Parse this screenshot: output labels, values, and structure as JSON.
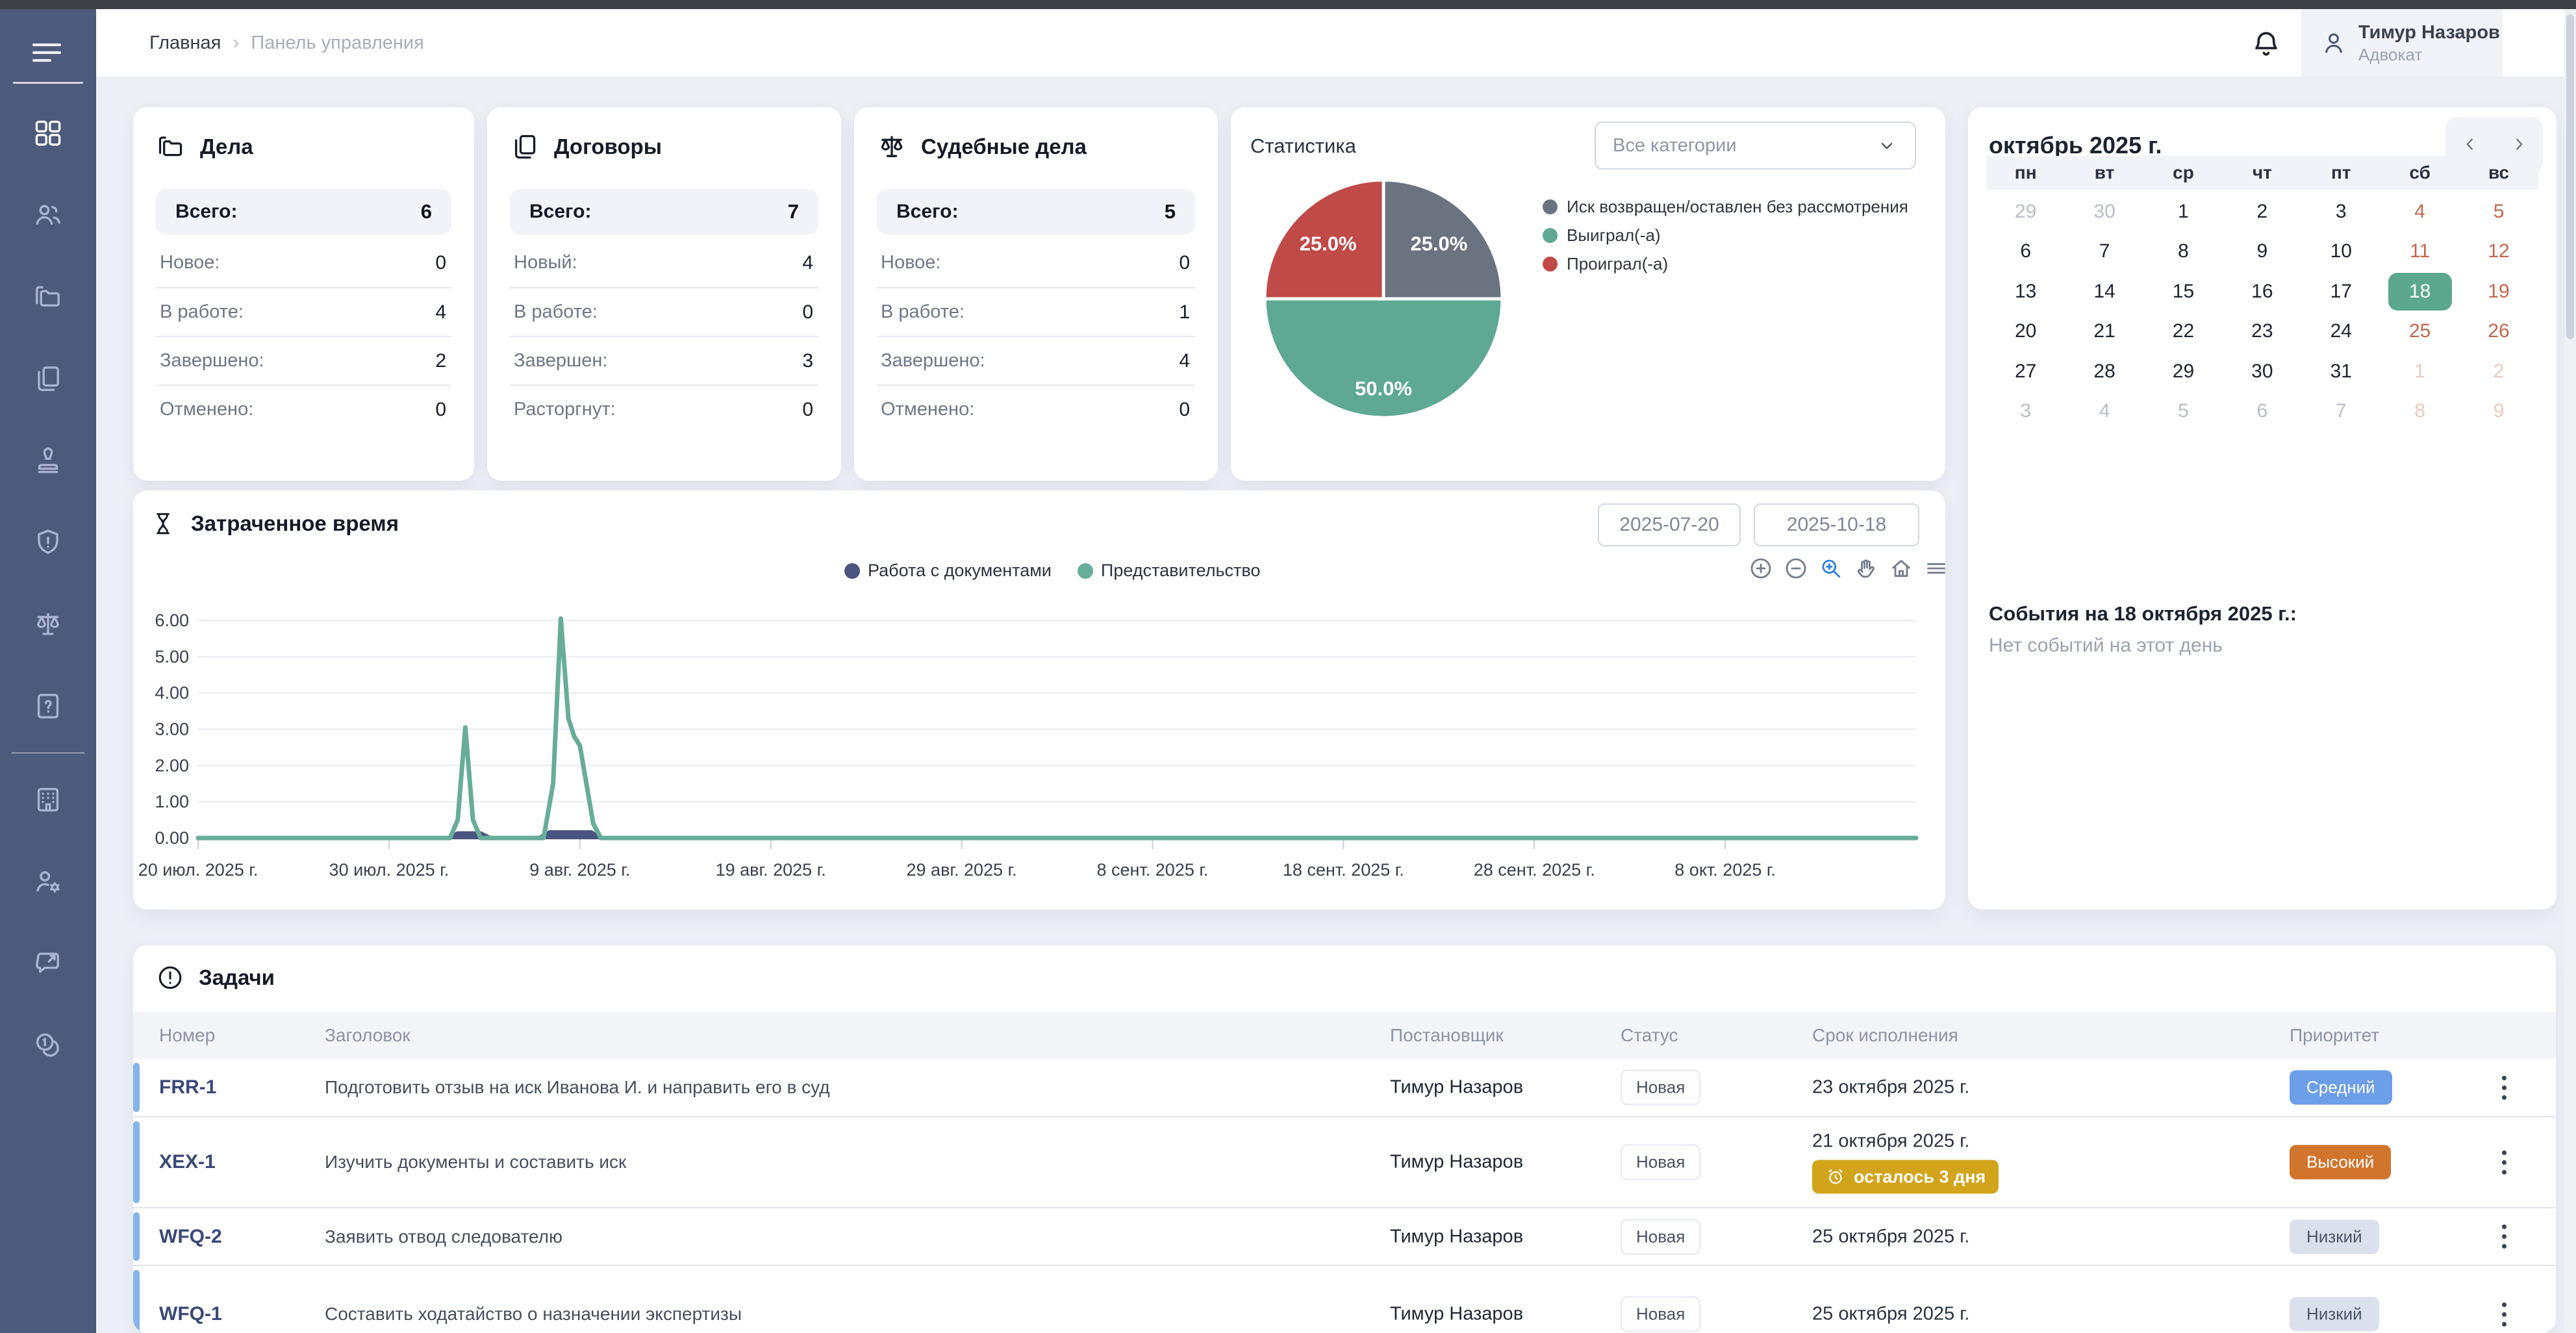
{
  "header": {
    "breadcrumb": {
      "home": "Главная",
      "separator": "›",
      "current": "Панель управления"
    },
    "user": {
      "name": "Тимур Назаров",
      "role": "Адвокат"
    }
  },
  "sidebar": {
    "items": [
      {
        "id": "dashboard",
        "icon": "dashboard",
        "active": true
      },
      {
        "id": "clients",
        "icon": "users"
      },
      {
        "id": "cases",
        "icon": "folders"
      },
      {
        "id": "contracts",
        "icon": "documents"
      },
      {
        "id": "stamp",
        "icon": "stamp"
      },
      {
        "id": "risks",
        "icon": "shield-alert"
      },
      {
        "id": "court-cases",
        "icon": "scales"
      },
      {
        "id": "requests",
        "icon": "file-question"
      },
      "divider",
      {
        "id": "office",
        "icon": "building"
      },
      {
        "id": "personnel",
        "icon": "user-gear"
      },
      {
        "id": "feedback",
        "icon": "chat-arrow"
      },
      {
        "id": "billing",
        "icon": "coins"
      }
    ]
  },
  "summary_cards": [
    {
      "title": "Дела",
      "icon": "folders",
      "total": {
        "label": "Всего:",
        "value": "6"
      },
      "rows": [
        {
          "label": "Новое:",
          "value": "0"
        },
        {
          "label": "В работе:",
          "value": "4"
        },
        {
          "label": "Завершено:",
          "value": "2"
        },
        {
          "label": "Отменено:",
          "value": "0"
        }
      ]
    },
    {
      "title": "Договоры",
      "icon": "documents",
      "total": {
        "label": "Всего:",
        "value": "7"
      },
      "rows": [
        {
          "label": "Новый:",
          "value": "4"
        },
        {
          "label": "В работе:",
          "value": "0"
        },
        {
          "label": "Завершен:",
          "value": "3"
        },
        {
          "label": "Расторгнут:",
          "value": "0"
        }
      ]
    },
    {
      "title": "Судебные дела",
      "icon": "scales",
      "total": {
        "label": "Всего:",
        "value": "5"
      },
      "rows": [
        {
          "label": "Новое:",
          "value": "0"
        },
        {
          "label": "В работе:",
          "value": "1"
        },
        {
          "label": "Завершено:",
          "value": "4"
        },
        {
          "label": "Отменено:",
          "value": "0"
        }
      ]
    }
  ],
  "statistics": {
    "title": "Статистика",
    "filter_value": "Все категории"
  },
  "time_section": {
    "title": "Затраченное время",
    "date_from": "2025-07-20",
    "date_to": "2025-10-18",
    "toolbar": [
      "zoom-in",
      "zoom-out",
      "box-zoom",
      "pan",
      "home",
      "menu-bars"
    ]
  },
  "calendar": {
    "title": "октябрь 2025 г.",
    "weekdays": [
      "пн",
      "вт",
      "ср",
      "чт",
      "пт",
      "сб",
      "вс"
    ],
    "weeks": [
      [
        {
          "d": "29",
          "t": "muted"
        },
        {
          "d": "30",
          "t": "muted"
        },
        {
          "d": "1",
          "t": "normal"
        },
        {
          "d": "2",
          "t": "normal"
        },
        {
          "d": "3",
          "t": "normal"
        },
        {
          "d": "4",
          "t": "weekend"
        },
        {
          "d": "5",
          "t": "weekend"
        }
      ],
      [
        {
          "d": "6",
          "t": "normal"
        },
        {
          "d": "7",
          "t": "normal"
        },
        {
          "d": "8",
          "t": "normal"
        },
        {
          "d": "9",
          "t": "normal"
        },
        {
          "d": "10",
          "t": "normal"
        },
        {
          "d": "11",
          "t": "weekend"
        },
        {
          "d": "12",
          "t": "weekend"
        }
      ],
      [
        {
          "d": "13",
          "t": "normal"
        },
        {
          "d": "14",
          "t": "normal"
        },
        {
          "d": "15",
          "t": "normal"
        },
        {
          "d": "16",
          "t": "normal"
        },
        {
          "d": "17",
          "t": "normal"
        },
        {
          "d": "18",
          "t": "selected"
        },
        {
          "d": "19",
          "t": "weekend"
        }
      ],
      [
        {
          "d": "20",
          "t": "normal"
        },
        {
          "d": "21",
          "t": "normal"
        },
        {
          "d": "22",
          "t": "normal"
        },
        {
          "d": "23",
          "t": "normal"
        },
        {
          "d": "24",
          "t": "normal"
        },
        {
          "d": "25",
          "t": "weekend"
        },
        {
          "d": "26",
          "t": "weekend"
        }
      ],
      [
        {
          "d": "27",
          "t": "normal"
        },
        {
          "d": "28",
          "t": "normal"
        },
        {
          "d": "29",
          "t": "normal"
        },
        {
          "d": "30",
          "t": "normal"
        },
        {
          "d": "31",
          "t": "normal"
        },
        {
          "d": "1",
          "t": "muted-weekend"
        },
        {
          "d": "2",
          "t": "muted-weekend"
        }
      ],
      [
        {
          "d": "3",
          "t": "muted"
        },
        {
          "d": "4",
          "t": "muted"
        },
        {
          "d": "5",
          "t": "muted"
        },
        {
          "d": "6",
          "t": "muted"
        },
        {
          "d": "7",
          "t": "muted"
        },
        {
          "d": "8",
          "t": "muted-weekend"
        },
        {
          "d": "9",
          "t": "muted-weekend"
        }
      ]
    ]
  },
  "events": {
    "title": "События на 18 октября 2025 г.:",
    "empty": "Нет событий на этот день"
  },
  "tasks": {
    "title": "Задачи",
    "columns": [
      "Номер",
      "Заголовок",
      "Постановщик",
      "Статус",
      "Срок исполнения",
      "Приоритет"
    ],
    "rows": [
      {
        "id": "FRR-1",
        "title": "Подготовить отзыв на иск Иванова И. и направить его в суд",
        "author": "Тимур Назаров",
        "status": "Новая",
        "due": "23 октября 2025 г.",
        "due_badge": "",
        "priority": "Средний",
        "priority_type": "medium"
      },
      {
        "id": "XEX-1",
        "title": "Изучить документы и составить иск",
        "author": "Тимур Назаров",
        "status": "Новая",
        "due": "21 октября 2025 г.",
        "due_badge": "осталось 3 дня",
        "priority": "Высокий",
        "priority_type": "high"
      },
      {
        "id": "WFQ-2",
        "title": "Заявить отвод следователю",
        "author": "Тимур Назаров",
        "status": "Новая",
        "due": "25 октября 2025 г.",
        "due_badge": "",
        "priority": "Низкий",
        "priority_type": "low"
      },
      {
        "id": "WFQ-1",
        "title": "Составить ходатайство о назначении экспертизы",
        "author": "Тимур Назаров",
        "status": "Новая",
        "due": "25 октября 2025 г.",
        "due_badge": "",
        "priority": "Низкий",
        "priority_type": "low"
      }
    ]
  },
  "chart_data": [
    {
      "type": "pie",
      "title": "Статистика",
      "labels": [
        "Иск возвращен/оставлен без рассмотрения",
        "Выиграл(-а)",
        "Проиграл(-а)"
      ],
      "values": [
        25,
        50,
        25
      ],
      "slice_labels": [
        "25.0%",
        "50.0%",
        "25.0%"
      ],
      "colors": [
        "#6b7280",
        "#5EA894",
        "#BF4A47"
      ],
      "start_angle_deg": 0,
      "direction": "clockwise",
      "legend_position": "right"
    },
    {
      "type": "line",
      "title": "Затраченное время",
      "ylim": [
        0,
        6.45
      ],
      "y_ticks": [
        "0.00",
        "1.00",
        "2.00",
        "3.00",
        "4.00",
        "5.00",
        "6.00"
      ],
      "x_domain_days": [
        0,
        90
      ],
      "x_start_date": "2025-07-20",
      "x_ticks": [
        {
          "pos": 0,
          "label": "20 июл. 2025 г."
        },
        {
          "pos": 10,
          "label": "30 июл. 2025 г."
        },
        {
          "pos": 20,
          "label": "9 авг. 2025 г."
        },
        {
          "pos": 30,
          "label": "19 авг. 2025 г."
        },
        {
          "pos": 40,
          "label": "29 авг. 2025 г."
        },
        {
          "pos": 50,
          "label": "8 сент. 2025 г."
        },
        {
          "pos": 60,
          "label": "18 сент. 2025 г."
        },
        {
          "pos": 70,
          "label": "28 сент. 2025 г."
        },
        {
          "pos": 80,
          "label": "8 окт. 2025 г."
        }
      ],
      "grid": true,
      "legend_position": "top",
      "series": [
        {
          "name": "Работа с документами",
          "color": "#4A5480",
          "style": "filled",
          "points": [
            [
              0,
              0
            ],
            [
              13,
              0
            ],
            [
              13.6,
              0.15
            ],
            [
              14.8,
              0.15
            ],
            [
              15.4,
              0
            ],
            [
              17.8,
              0
            ],
            [
              18.4,
              0.18
            ],
            [
              20.6,
              0.18
            ],
            [
              21.2,
              0
            ],
            [
              90,
              0
            ]
          ]
        },
        {
          "name": "Представительство",
          "color": "#67AD99",
          "style": "line",
          "points": [
            [
              0,
              0
            ],
            [
              13.2,
              0
            ],
            [
              13.6,
              0.5
            ],
            [
              14,
              3.05
            ],
            [
              14.4,
              0.5
            ],
            [
              14.8,
              0
            ],
            [
              18.1,
              0
            ],
            [
              18.6,
              1.5
            ],
            [
              19,
              6.05
            ],
            [
              19.4,
              3.3
            ],
            [
              19.7,
              2.8
            ],
            [
              20,
              2.55
            ],
            [
              20.7,
              0.4
            ],
            [
              21.1,
              0
            ],
            [
              90,
              0
            ]
          ]
        }
      ]
    }
  ],
  "colors": {
    "sidebar_bg": "#4E5A7C",
    "page_bg": "#EDEFF5",
    "selected_day": "#5CA78E",
    "weekend_text": "#C2674E",
    "priority_medium": "#6D9EE8",
    "priority_high": "#D1742C",
    "priority_low_bg": "#DAE0EC",
    "deadline_badge": "#D2A41A",
    "task_accent": "#84B4EA",
    "active_tool": "#2D7EE0"
  }
}
